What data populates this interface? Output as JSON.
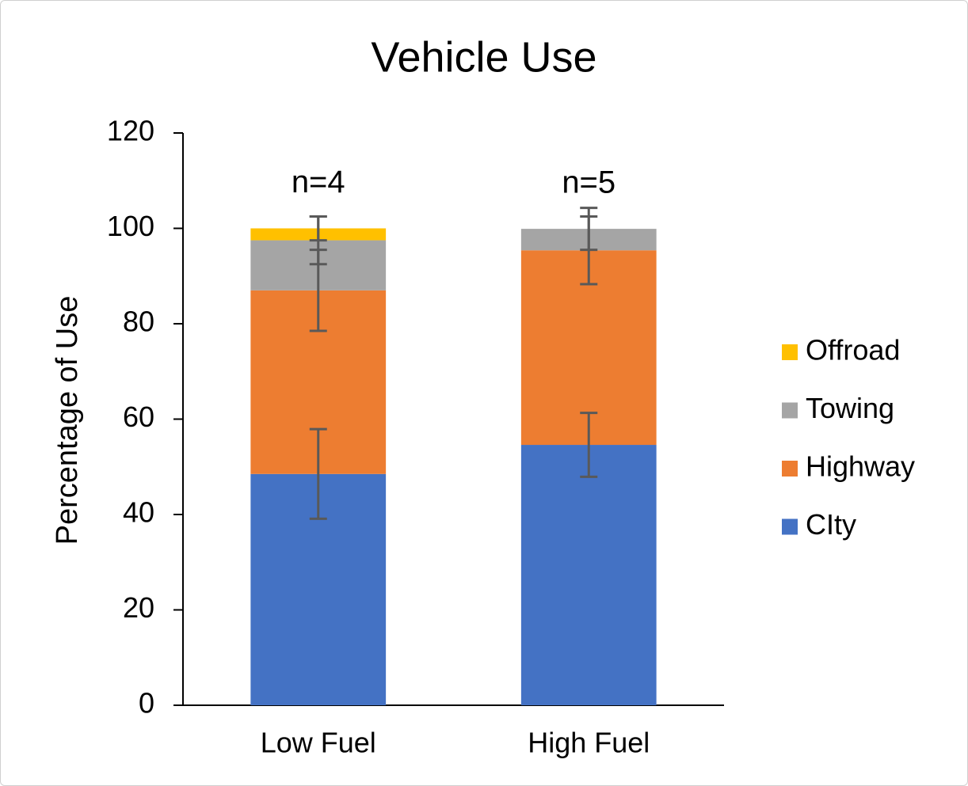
{
  "chart_data": {
    "type": "stacked-bar",
    "title": "Vehicle Use",
    "y_label": "Percentage of Use",
    "categories": [
      "Low Fuel",
      "High Fuel"
    ],
    "annotations": [
      "n=4",
      "n=5"
    ],
    "series": [
      {
        "name": "CIty",
        "color": "#4472c4",
        "values": [
          48.5,
          54.6
        ],
        "errors": [
          9.4,
          6.7
        ]
      },
      {
        "name": "Highway",
        "color": "#ed7d31",
        "values": [
          38.5,
          40.8
        ],
        "errors": [
          8.5,
          7.1
        ]
      },
      {
        "name": "Towing",
        "color": "#a5a5a5",
        "values": [
          10.5,
          4.5
        ],
        "errors": [
          5,
          4.4
        ]
      },
      {
        "name": "Offroad",
        "color": "#ffc000",
        "values": [
          2.5,
          0
        ],
        "errors": [
          2.5,
          null
        ]
      }
    ],
    "ylim": [
      0,
      120
    ],
    "yticks": [
      0,
      20,
      40,
      60,
      80,
      100,
      120
    ],
    "grid": false,
    "legend": "right"
  }
}
